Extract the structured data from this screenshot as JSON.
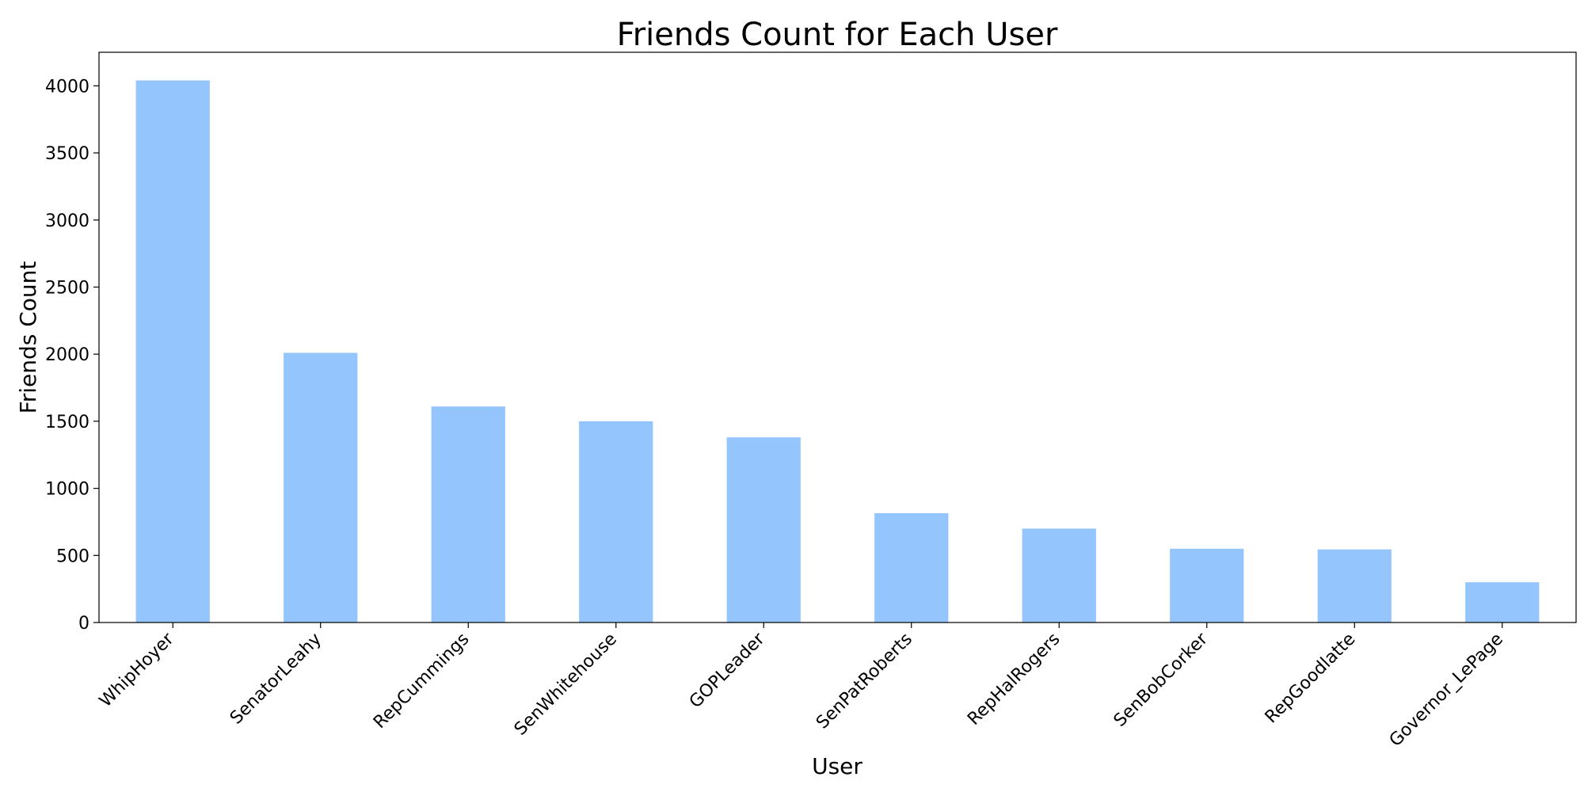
{
  "chart_data": {
    "type": "bar",
    "title": "Friends Count for Each User",
    "xlabel": "User",
    "ylabel": "Friends Count",
    "categories": [
      "WhipHoyer",
      "SenatorLeahy",
      "RepCummings",
      "SenWhitehouse",
      "GOPLeader",
      "SenPatRoberts",
      "RepHalRogers",
      "SenBobCorker",
      "RepGoodlatte",
      "Governor_LePage"
    ],
    "values": [
      4040,
      2010,
      1610,
      1500,
      1380,
      815,
      700,
      550,
      545,
      300
    ],
    "ylim": [
      0,
      4250
    ],
    "yticks": [
      0,
      500,
      1000,
      1500,
      2000,
      2500,
      3000,
      3500,
      4000
    ],
    "bar_color": "#94c5fc",
    "grid": false,
    "legend": "none"
  }
}
